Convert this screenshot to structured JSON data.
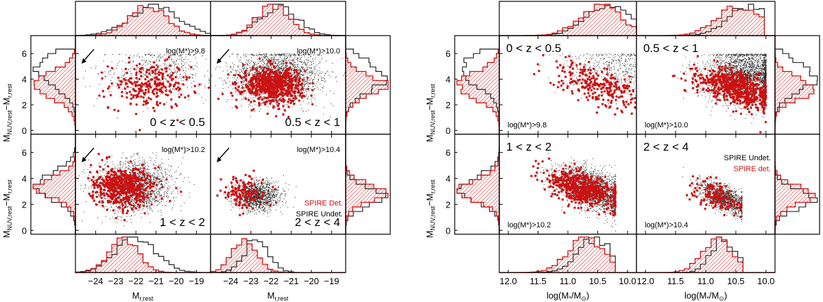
{
  "chart_data": [
    {
      "type": "scatter",
      "figure": "left",
      "xlabel_main": "M",
      "xlabel_sub": "r,rest",
      "ylabel_main": "M",
      "ylabel_sub": "NUV,rest",
      "ylabel_minus": "−M",
      "ylabel_sub2": "r,rest",
      "xlim": [
        -25,
        -18.3
      ],
      "ylim": [
        -0.3,
        7.4
      ],
      "xticks": [
        -24,
        -23,
        -22,
        -21,
        -20,
        -19
      ],
      "xtick_labels": [
        "−24",
        "−23",
        "−22",
        "−21",
        "−20",
        "−19"
      ],
      "yticks": [
        0,
        2,
        4,
        6
      ],
      "series": [
        {
          "name": "SPIRE Undet.",
          "color": "#222222",
          "kind": "small dots"
        },
        {
          "name": "SPIRE Det.",
          "color": "#cc1111",
          "kind": "large dots + hatched histogram"
        }
      ],
      "legend": {
        "det_label": "SPIRE Det.",
        "undet_label": "SPIRE Undet.",
        "placement": "bottom-right of 2 < z < 4 panel"
      },
      "panels": [
        {
          "z_label": "0 < z < 0.5",
          "mass_label": "log(M*)>9.8",
          "z_pos": "bottom-right",
          "mass_pos": "top-right",
          "arrow": true,
          "det": {
            "cx": -21.3,
            "cy": 3.5,
            "sx": 1.0,
            "sy": 0.9,
            "n": 250,
            "corr": 0
          },
          "undet": {
            "cx": -21.0,
            "cy": 4.6,
            "sx": 1.4,
            "sy": 1.0,
            "n": 550,
            "corr": 0,
            "ymax": 6.0
          }
        },
        {
          "z_label": "0.5 < z < 1",
          "mass_label": "log(M*)>10.0",
          "z_pos": "bottom-right",
          "mass_pos": "top-right",
          "arrow": true,
          "det": {
            "cx": -21.9,
            "cy": 3.5,
            "sx": 0.75,
            "sy": 0.7,
            "n": 650,
            "corr": 0
          },
          "undet": {
            "cx": -21.7,
            "cy": 4.3,
            "sx": 1.1,
            "sy": 1.05,
            "n": 2200,
            "corr": 0,
            "ymax": 6.0
          }
        },
        {
          "z_label": "1 < z < 2",
          "mass_label": "log(M*)>10.2",
          "z_pos": "bottom-right",
          "mass_pos": "top-right",
          "arrow": true,
          "det": {
            "cx": -22.6,
            "cy": 3.4,
            "sx": 0.75,
            "sy": 0.8,
            "n": 550,
            "corr": 0
          },
          "undet": {
            "cx": -22.1,
            "cy": 3.4,
            "sx": 0.9,
            "sy": 0.95,
            "n": 2000,
            "corr": 0,
            "ymax": 6.0
          }
        },
        {
          "z_label": "2 < z < 4",
          "mass_label": "log(M*)>10.4",
          "z_pos": "bottom-right",
          "mass_pos": "top-right",
          "arrow": true,
          "det": {
            "cx": -23.3,
            "cy": 2.9,
            "sx": 0.55,
            "sy": 0.6,
            "n": 140,
            "corr": 0
          },
          "undet": {
            "cx": -22.7,
            "cy": 2.7,
            "sx": 0.55,
            "sy": 0.55,
            "n": 1400,
            "corr": 0,
            "ymax": 6.0
          }
        }
      ],
      "x_hists": [
        {
          "mu_det": -21.4,
          "sd_det": 0.9,
          "mu_undet": -21.1,
          "sd_undet": 1.2
        },
        {
          "mu_det": -21.9,
          "sd_det": 0.8,
          "mu_undet": -21.6,
          "sd_undet": 0.9
        },
        {
          "mu_det": -22.6,
          "sd_det": 0.7,
          "mu_undet": -22.0,
          "sd_undet": 1.0
        },
        {
          "mu_det": -23.3,
          "sd_det": 0.6,
          "mu_undet": -22.7,
          "sd_undet": 0.6
        }
      ],
      "y_hists": [
        {
          "mu_det": 3.5,
          "sd_det": 1.0,
          "mu_undet": 4.7,
          "sd_undet": 1.2
        },
        {
          "mu_det": 3.5,
          "sd_det": 0.8,
          "mu_undet": 4.2,
          "sd_undet": 1.1
        },
        {
          "mu_det": 3.3,
          "sd_det": 0.8,
          "mu_undet": 3.4,
          "sd_undet": 1.0
        },
        {
          "mu_det": 2.9,
          "sd_det": 0.7,
          "mu_undet": 2.6,
          "sd_undet": 0.7
        }
      ]
    },
    {
      "type": "scatter",
      "figure": "right",
      "xlabel_text": "log(M",
      "xlabel_star": "*",
      "xlabel_mid": "/M",
      "xlabel_sun": "⊙",
      "xlabel_end": ")",
      "ylabel_main": "M",
      "ylabel_sub": "NUV,rest",
      "ylabel_minus": "−M",
      "ylabel_sub2": "r,rest",
      "xlim": [
        12.15,
        9.85
      ],
      "ylim": [
        -0.3,
        7.4
      ],
      "xticks": [
        12.0,
        11.5,
        11.0,
        10.5,
        10.0
      ],
      "xtick_labels": [
        "12.0",
        "11.5",
        "11.0",
        "10.5",
        "10.0"
      ],
      "yticks": [
        0,
        2,
        4,
        6
      ],
      "series": [
        {
          "name": "SPIRE Undet.",
          "color": "#222222",
          "kind": "small dots"
        },
        {
          "name": "SPIRE det.",
          "color": "#cc1111",
          "kind": "large dots + hatched histogram"
        }
      ],
      "legend": {
        "undet_label": "SPIRE Undet.",
        "det_label": "SPIRE det.",
        "placement": "top-right of 2 < z < 4 panel"
      },
      "panels": [
        {
          "z_label": "0 < z < 0.5",
          "mass_label": "log(M*)>9.8",
          "z_pos": "top-left",
          "mass_pos": "bottom-left",
          "det": {
            "cx": 10.45,
            "cy": 3.5,
            "sx": 0.38,
            "sy": 0.95,
            "n": 260,
            "corr": 0.6,
            "xmin": 9.8
          },
          "undet": {
            "cx": 10.2,
            "cy": 4.7,
            "sx": 0.4,
            "sy": 1.0,
            "n": 500,
            "corr": 0,
            "xmin": 9.8,
            "ymax": 6.0
          }
        },
        {
          "z_label": "0.5 < z < 1",
          "mass_label": "log(M*)>10.0",
          "z_pos": "top-left",
          "mass_pos": "bottom-left",
          "det": {
            "cx": 10.5,
            "cy": 3.3,
            "sx": 0.33,
            "sy": 0.8,
            "n": 650,
            "corr": 0.5,
            "xmin": 10.0
          },
          "undet": {
            "cx": 10.35,
            "cy": 4.2,
            "sx": 0.33,
            "sy": 1.05,
            "n": 2600,
            "corr": 0,
            "xmin": 10.0,
            "ymax": 6.0
          }
        },
        {
          "z_label": "1 < z < 2",
          "mass_label": "log(M*)>10.2",
          "z_pos": "top-left",
          "mass_pos": "bottom-left",
          "det": {
            "cx": 10.75,
            "cy": 3.2,
            "sx": 0.3,
            "sy": 0.75,
            "n": 560,
            "corr": 0.55,
            "xmin": 10.2
          },
          "undet": {
            "cx": 10.6,
            "cy": 3.2,
            "sx": 0.3,
            "sy": 0.85,
            "n": 2300,
            "corr": 0.5,
            "xmin": 10.2,
            "ymax": 6.0
          }
        },
        {
          "z_label": "2 < z < 4",
          "mass_label": "log(M*)>10.4",
          "z_pos": "top-left",
          "mass_pos": "bottom-left",
          "det": {
            "cx": 10.85,
            "cy": 2.7,
            "sx": 0.22,
            "sy": 0.65,
            "n": 150,
            "corr": 0.6,
            "xmin": 10.4
          },
          "undet": {
            "cx": 10.7,
            "cy": 2.5,
            "sx": 0.2,
            "sy": 0.6,
            "n": 1300,
            "corr": 0.6,
            "xmin": 10.4,
            "ymax": 6.0
          }
        }
      ],
      "x_hists": [
        {
          "mu_det": 10.45,
          "sd_det": 0.35,
          "mu_undet": 10.3,
          "sd_undet": 0.38,
          "cut": 9.8
        },
        {
          "mu_det": 10.45,
          "sd_det": 0.35,
          "mu_undet": 10.3,
          "sd_undet": 0.33,
          "cut": 10.0
        },
        {
          "mu_det": 10.7,
          "sd_det": 0.3,
          "mu_undet": 10.55,
          "sd_undet": 0.28,
          "cut": 10.2
        },
        {
          "mu_det": 10.8,
          "sd_det": 0.25,
          "mu_undet": 10.7,
          "sd_undet": 0.2,
          "cut": 10.4
        }
      ],
      "y_hists": [
        {
          "mu_det": 3.5,
          "sd_det": 1.0,
          "mu_undet": 4.7,
          "sd_undet": 1.2
        },
        {
          "mu_det": 3.3,
          "sd_det": 0.8,
          "mu_undet": 4.2,
          "sd_undet": 1.1
        },
        {
          "mu_det": 3.1,
          "sd_det": 0.8,
          "mu_undet": 3.2,
          "sd_undet": 0.9
        },
        {
          "mu_det": 2.7,
          "sd_det": 0.7,
          "mu_undet": 2.4,
          "sd_undet": 0.7
        }
      ]
    }
  ],
  "colors": {
    "det": "#cc1111",
    "undet": "#222222",
    "axis": "#000000"
  }
}
